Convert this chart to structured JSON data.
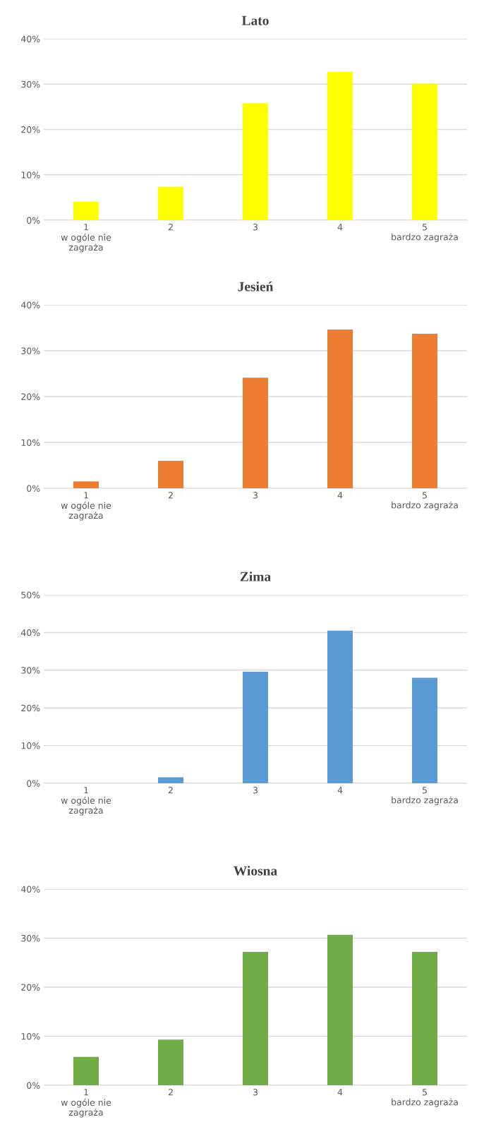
{
  "chart_data": [
    {
      "type": "bar",
      "title": "Lato",
      "categories": [
        "1\nw ogóle nie\nzagraża",
        "2",
        "3",
        "4",
        "5\nbardzo zagraża"
      ],
      "values": [
        4.1,
        7.4,
        25.8,
        32.7,
        30.1
      ],
      "color": "#ffff00",
      "ylim": [
        0,
        40
      ],
      "yticks": [
        {
          "value": 0,
          "label": "0%"
        },
        {
          "value": 10,
          "label": "10%"
        },
        {
          "value": 20,
          "label": "20%"
        },
        {
          "value": 30,
          "label": "30%"
        },
        {
          "value": 40,
          "label": "40%"
        }
      ],
      "grid": "y"
    },
    {
      "type": "bar",
      "title": "Jesień",
      "categories": [
        "1\nw ogóle nie\nzagraża",
        "2",
        "3",
        "4",
        "5\nbardzo zagraża"
      ],
      "values": [
        1.5,
        6.0,
        24.1,
        34.6,
        33.7
      ],
      "color": "#ed7d31",
      "ylim": [
        0,
        40
      ],
      "yticks": [
        {
          "value": 0,
          "label": "0%"
        },
        {
          "value": 10,
          "label": "10%"
        },
        {
          "value": 20,
          "label": "20%"
        },
        {
          "value": 30,
          "label": "30%"
        },
        {
          "value": 40,
          "label": "40%"
        }
      ],
      "grid": "y"
    },
    {
      "type": "bar",
      "title": "Zima",
      "categories": [
        "1\nw ogóle nie\nzagraża",
        "2",
        "3",
        "4",
        "5\nbardzo zagraża"
      ],
      "values": [
        0,
        1.6,
        29.6,
        40.5,
        28.0
      ],
      "color": "#5b9bd5",
      "ylim": [
        0,
        50
      ],
      "yticks": [
        {
          "value": 0,
          "label": "0%"
        },
        {
          "value": 10,
          "label": "10%"
        },
        {
          "value": 20,
          "label": "20%"
        },
        {
          "value": 30,
          "label": "30%"
        },
        {
          "value": 40,
          "label": "40%"
        },
        {
          "value": 50,
          "label": "50%"
        }
      ],
      "grid": "y"
    },
    {
      "type": "bar",
      "title": "Wiosna",
      "categories": [
        "1\nw ogóle nie\nzagraża",
        "2",
        "3",
        "4",
        "5\nbardzo zagraża"
      ],
      "values": [
        5.8,
        9.3,
        27.2,
        30.7,
        27.2
      ],
      "color": "#70ad47",
      "ylim": [
        0,
        40
      ],
      "yticks": [
        {
          "value": 0,
          "label": "0%"
        },
        {
          "value": 10,
          "label": "10%"
        },
        {
          "value": 20,
          "label": "20%"
        },
        {
          "value": 30,
          "label": "30%"
        },
        {
          "value": 40,
          "label": "40%"
        }
      ],
      "grid": "y"
    }
  ]
}
